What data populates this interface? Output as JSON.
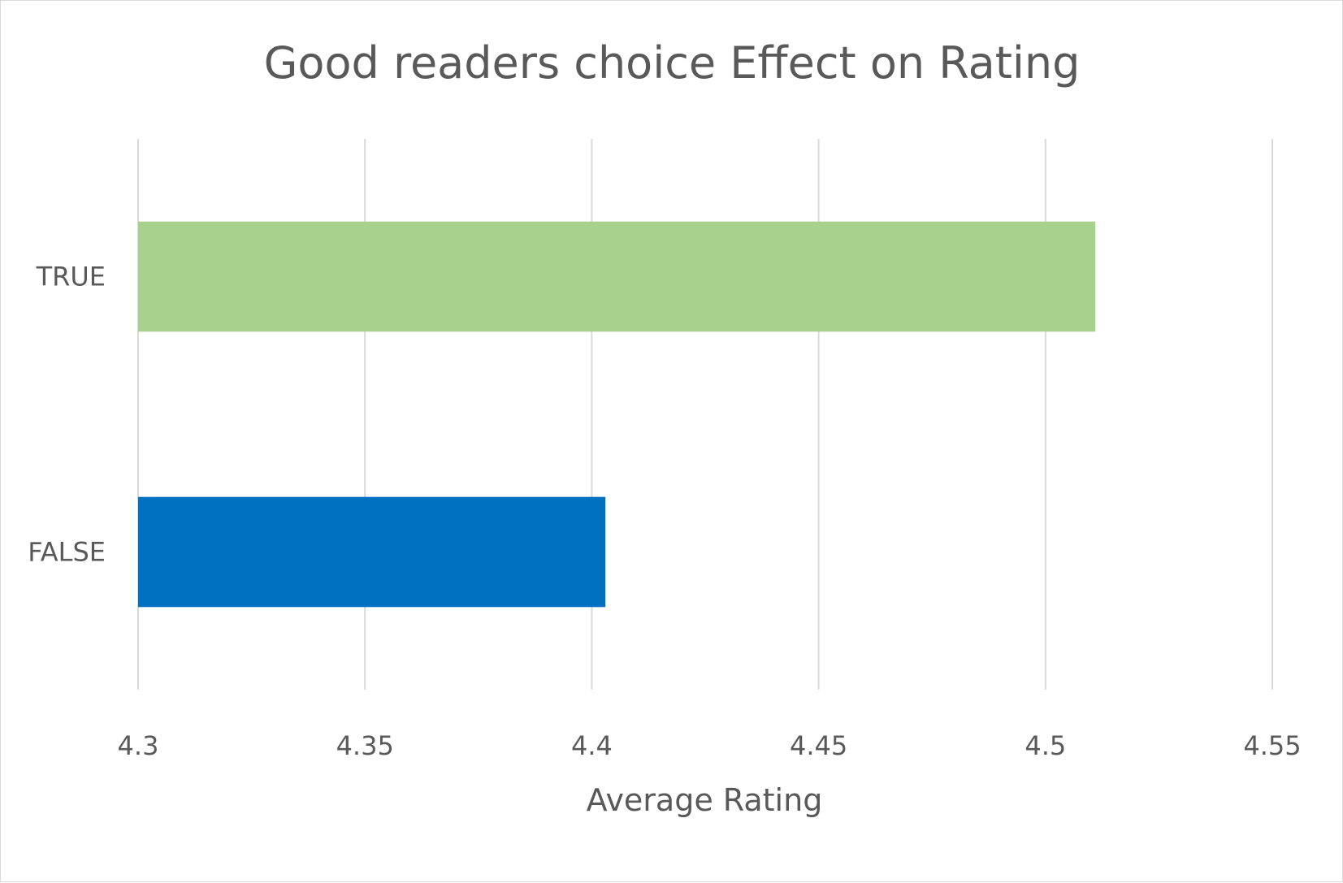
{
  "chart_data": {
    "type": "bar",
    "orientation": "horizontal",
    "title": "Good readers choice Effect on Rating",
    "xlabel": "Average Rating",
    "ylabel": "",
    "categories": [
      "TRUE",
      "FALSE"
    ],
    "values": [
      4.511,
      4.403
    ],
    "colors": [
      "#a9d18e",
      "#0070c0"
    ],
    "xlim": [
      4.3,
      4.55
    ],
    "x_ticks": [
      "4.3",
      "4.35",
      "4.4",
      "4.45",
      "4.5",
      "4.55"
    ],
    "grid": "vertical",
    "legend": "none"
  }
}
